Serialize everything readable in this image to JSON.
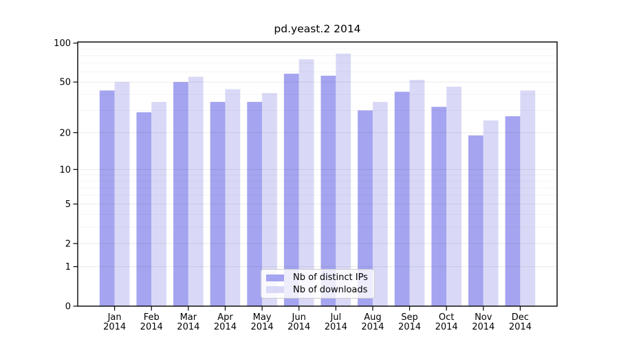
{
  "chart_data": {
    "type": "bar",
    "title": "pd.yeast.2 2014",
    "categories": [
      "Jan 2014",
      "Feb 2014",
      "Mar 2014",
      "Apr 2014",
      "May 2014",
      "Jun 2014",
      "Jul 2014",
      "Aug 2014",
      "Sep 2014",
      "Oct 2014",
      "Nov 2014",
      "Dec 2014"
    ],
    "series": [
      {
        "name": "Nb of distinct IPs",
        "color": "#a4a4f0",
        "values": [
          43,
          29,
          50,
          35,
          35,
          58,
          56,
          30,
          42,
          32,
          19,
          27
        ]
      },
      {
        "name": "Nb of downloads",
        "color": "#d9d9f7",
        "values": [
          50,
          35,
          55,
          44,
          41,
          75,
          83,
          35,
          52,
          46,
          25,
          43
        ]
      }
    ],
    "xlabel": "",
    "ylabel": "",
    "yscale": "log1p",
    "ylim": [
      0,
      102
    ],
    "y_tick_values": [
      0,
      1,
      2,
      5,
      10,
      20,
      50,
      100
    ],
    "y_tick_labels": [
      "0",
      "1",
      "2",
      "5",
      "10",
      "20",
      "50",
      "100"
    ],
    "y_minor_gridlines": [
      3,
      4,
      6,
      7,
      8,
      9,
      30,
      40,
      60,
      70,
      80,
      90
    ],
    "grid": "horizontal",
    "legend_position": "lower-center"
  },
  "colors": {
    "background": "#ffffff",
    "axis_line": "#000000",
    "tick_text": "#000000",
    "major_grid": "rgba(60,60,60,0.11)",
    "minor_grid": "rgba(60,60,60,0.06)"
  }
}
